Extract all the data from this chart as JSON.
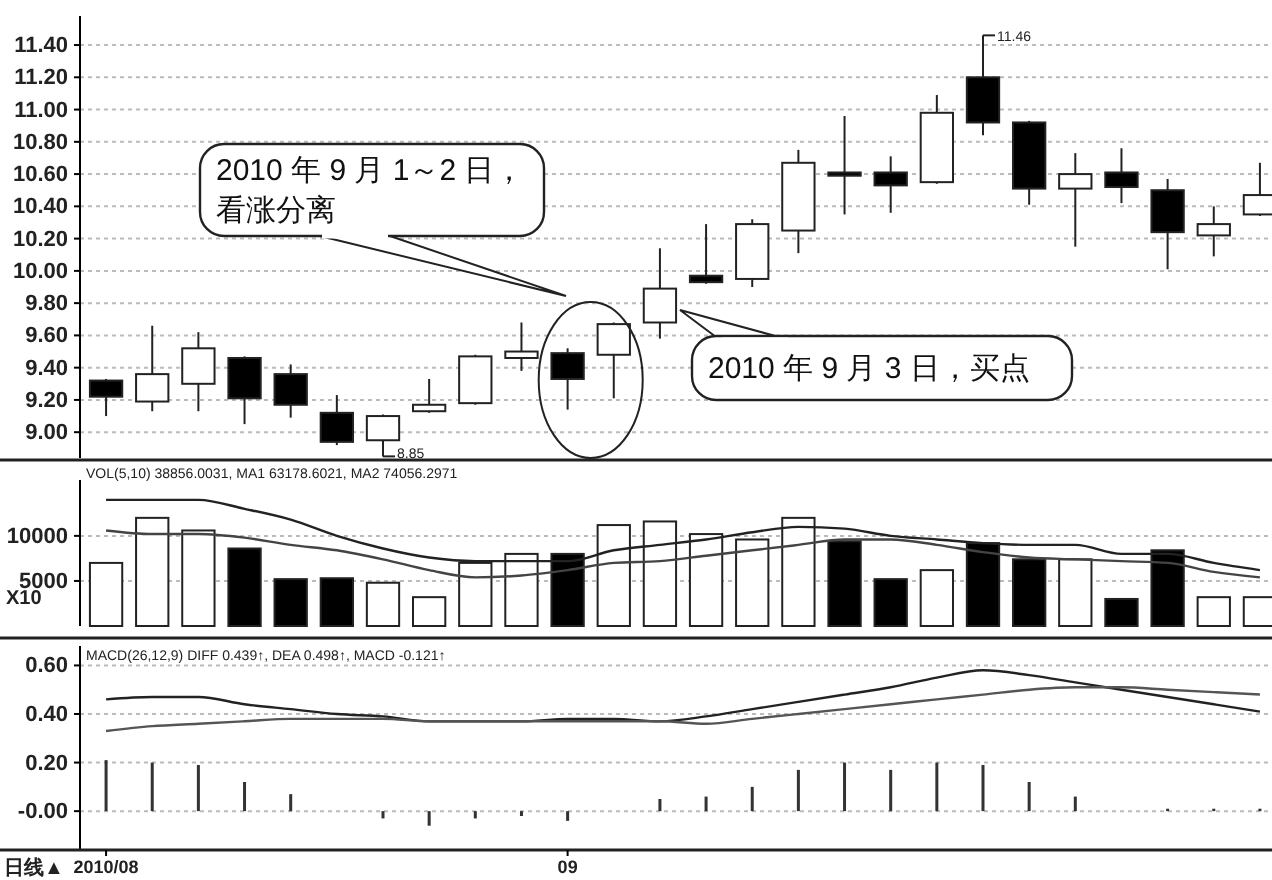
{
  "chart_data": [
    {
      "type": "candlestick",
      "categories": [
        null,
        null,
        null,
        null,
        null,
        null,
        null,
        null,
        null,
        null,
        null,
        null,
        null,
        null,
        null,
        null,
        null,
        null,
        null,
        null,
        null,
        null,
        null,
        null,
        null,
        null
      ],
      "ohlc": [
        [
          9.32,
          9.33,
          9.1,
          9.22
        ],
        [
          9.19,
          9.66,
          9.13,
          9.36
        ],
        [
          9.3,
          9.62,
          9.13,
          9.52
        ],
        [
          9.46,
          9.47,
          9.05,
          9.21
        ],
        [
          9.36,
          9.42,
          9.09,
          9.17
        ],
        [
          9.12,
          9.23,
          8.92,
          8.94
        ],
        [
          8.95,
          9.11,
          8.85,
          9.1
        ],
        [
          9.13,
          9.33,
          9.12,
          9.17
        ],
        [
          9.18,
          9.48,
          9.17,
          9.47
        ],
        [
          9.46,
          9.68,
          9.38,
          9.5
        ],
        [
          9.49,
          9.52,
          9.14,
          9.33
        ],
        [
          9.48,
          9.68,
          9.21,
          9.67
        ],
        [
          9.68,
          10.14,
          9.58,
          9.89
        ],
        [
          9.97,
          10.29,
          9.92,
          9.93
        ],
        [
          9.95,
          10.32,
          9.9,
          10.29
        ],
        [
          10.25,
          10.75,
          10.11,
          10.67
        ],
        [
          10.61,
          10.96,
          10.35,
          10.59
        ],
        [
          10.61,
          10.71,
          10.36,
          10.53
        ],
        [
          10.55,
          11.09,
          10.54,
          10.98
        ],
        [
          11.2,
          11.46,
          10.84,
          10.92
        ],
        [
          10.92,
          10.93,
          10.41,
          10.51
        ],
        [
          10.51,
          10.73,
          10.15,
          10.6
        ],
        [
          10.61,
          10.76,
          10.42,
          10.52
        ],
        [
          10.5,
          10.57,
          10.01,
          10.24
        ],
        [
          10.22,
          10.4,
          10.09,
          10.29
        ],
        [
          10.35,
          10.67,
          10.34,
          10.47
        ]
      ],
      "ylim": [
        8.84,
        11.58
      ],
      "yticks": [
        {
          "value": 9.0,
          "label": "9.00"
        },
        {
          "value": 9.2,
          "label": "9.20"
        },
        {
          "value": 9.4,
          "label": "9.40"
        },
        {
          "value": 9.6,
          "label": "9.60"
        },
        {
          "value": 9.8,
          "label": "9.80"
        },
        {
          "value": 10.0,
          "label": "10.00"
        },
        {
          "value": 10.2,
          "label": "10.20"
        },
        {
          "value": 10.4,
          "label": "10.40"
        },
        {
          "value": 10.6,
          "label": "10.60"
        },
        {
          "value": 10.8,
          "label": "10.80"
        },
        {
          "value": 11.0,
          "label": "11.00"
        },
        {
          "value": 11.2,
          "label": "11.20"
        },
        {
          "value": 11.4,
          "label": "11.40"
        }
      ],
      "grid": "y",
      "tick_labels": "y",
      "annotations": [
        "2010 年 9 月 1～2 日，看涨分离",
        "2010 年 9 月 3 日，买点",
        "11.46",
        "8.85"
      ]
    },
    {
      "type": "bar",
      "title": "VOL(5,10) 38856.0031, MA1 63178.6021, MA2 74056.2971",
      "categories": [
        null,
        null,
        null,
        null,
        null,
        null,
        null,
        null,
        null,
        null,
        null,
        null,
        null,
        null,
        null,
        null,
        null,
        null,
        null,
        null,
        null,
        null,
        null,
        null,
        null,
        null
      ],
      "series": [
        {
          "type": "bar",
          "values": [
            7000,
            12000,
            10600,
            8600,
            5200,
            5300,
            4800,
            3200,
            7000,
            8000,
            8000,
            11200,
            11600,
            10200,
            9600,
            12000,
            9400,
            5200,
            6200,
            9200,
            7400,
            7400,
            3000,
            8400,
            3200,
            3200
          ],
          "colors": [
            "#ffffff",
            "#ffffff",
            "#ffffff",
            "#000000",
            "#000000",
            "#000000",
            "#ffffff",
            "#ffffff",
            "#ffffff",
            "#ffffff",
            "#000000",
            "#ffffff",
            "#ffffff",
            "#ffffff",
            "#ffffff",
            "#ffffff",
            "#000000",
            "#000000",
            "#ffffff",
            "#000000",
            "#000000",
            "#ffffff",
            "#000000",
            "#000000",
            "#ffffff",
            "#ffffff"
          ]
        },
        {
          "type": "line",
          "color": "#222222",
          "values": [
            14000,
            14000,
            14000,
            13000,
            11800,
            10000,
            8600,
            7600,
            7200,
            7200,
            7200,
            8400,
            9000,
            9600,
            10400,
            11000,
            10800,
            10000,
            9600,
            9200,
            9000,
            9000,
            8000,
            8000,
            7000,
            6200
          ]
        },
        {
          "type": "line",
          "color": "#444444",
          "values": [
            10600,
            10200,
            10200,
            9800,
            9000,
            8400,
            7400,
            6200,
            5400,
            5600,
            6200,
            7000,
            7200,
            7800,
            8400,
            9000,
            9600,
            9600,
            9000,
            8200,
            7600,
            7400,
            7200,
            7000,
            6000,
            5400
          ]
        }
      ],
      "ylim": [
        0,
        16200
      ],
      "yticks": [
        5000,
        10000
      ],
      "grid": "y",
      "tick_labels": "y",
      "annotations": [
        "X10"
      ]
    },
    {
      "type": "bar",
      "title": "MACD(26,12,9) DIFF 0.439↑, DEA 0.498↑, MACD -0.121↑",
      "categories": [
        "2010/08",
        null,
        null,
        null,
        null,
        null,
        null,
        null,
        null,
        null,
        "09",
        null,
        null,
        null,
        null,
        null,
        null,
        null,
        null,
        null,
        null,
        null,
        null,
        null,
        null,
        null
      ],
      "series": [
        {
          "type": "bar",
          "color": "#333333",
          "values": [
            0.21,
            0.2,
            0.19,
            0.12,
            0.07,
            null,
            -0.03,
            -0.06,
            -0.03,
            -0.02,
            -0.04,
            null,
            0.05,
            0.06,
            0.1,
            0.17,
            0.2,
            0.17,
            0.2,
            0.19,
            0.12,
            0.06,
            null,
            0.01,
            0.01,
            0.01
          ]
        },
        {
          "type": "line",
          "color": "#222222",
          "values": [
            0.46,
            0.47,
            0.47,
            0.44,
            0.42,
            0.4,
            0.39,
            0.37,
            0.37,
            0.37,
            0.38,
            0.38,
            0.37,
            0.39,
            0.42,
            0.45,
            0.48,
            0.51,
            0.55,
            0.58,
            0.56,
            0.53,
            0.5,
            0.47,
            0.44,
            0.41
          ]
        },
        {
          "type": "line",
          "color": "#555555",
          "values": [
            0.33,
            0.35,
            0.36,
            0.37,
            0.38,
            0.38,
            0.38,
            0.37,
            0.37,
            0.37,
            0.37,
            0.37,
            0.37,
            0.36,
            0.38,
            0.4,
            0.42,
            0.44,
            0.46,
            0.48,
            0.5,
            0.51,
            0.51,
            0.5,
            0.49,
            0.48
          ]
        }
      ],
      "ylim": [
        -0.16,
        0.68
      ],
      "yticks": [
        {
          "value": 0,
          "label": "-0.00"
        },
        {
          "value": 0.2,
          "label": "0.20"
        },
        {
          "value": 0.4,
          "label": "0.40"
        },
        {
          "value": 0.6,
          "label": "0.60"
        }
      ],
      "grid": "y",
      "annotations": [
        "日线▲"
      ]
    }
  ]
}
